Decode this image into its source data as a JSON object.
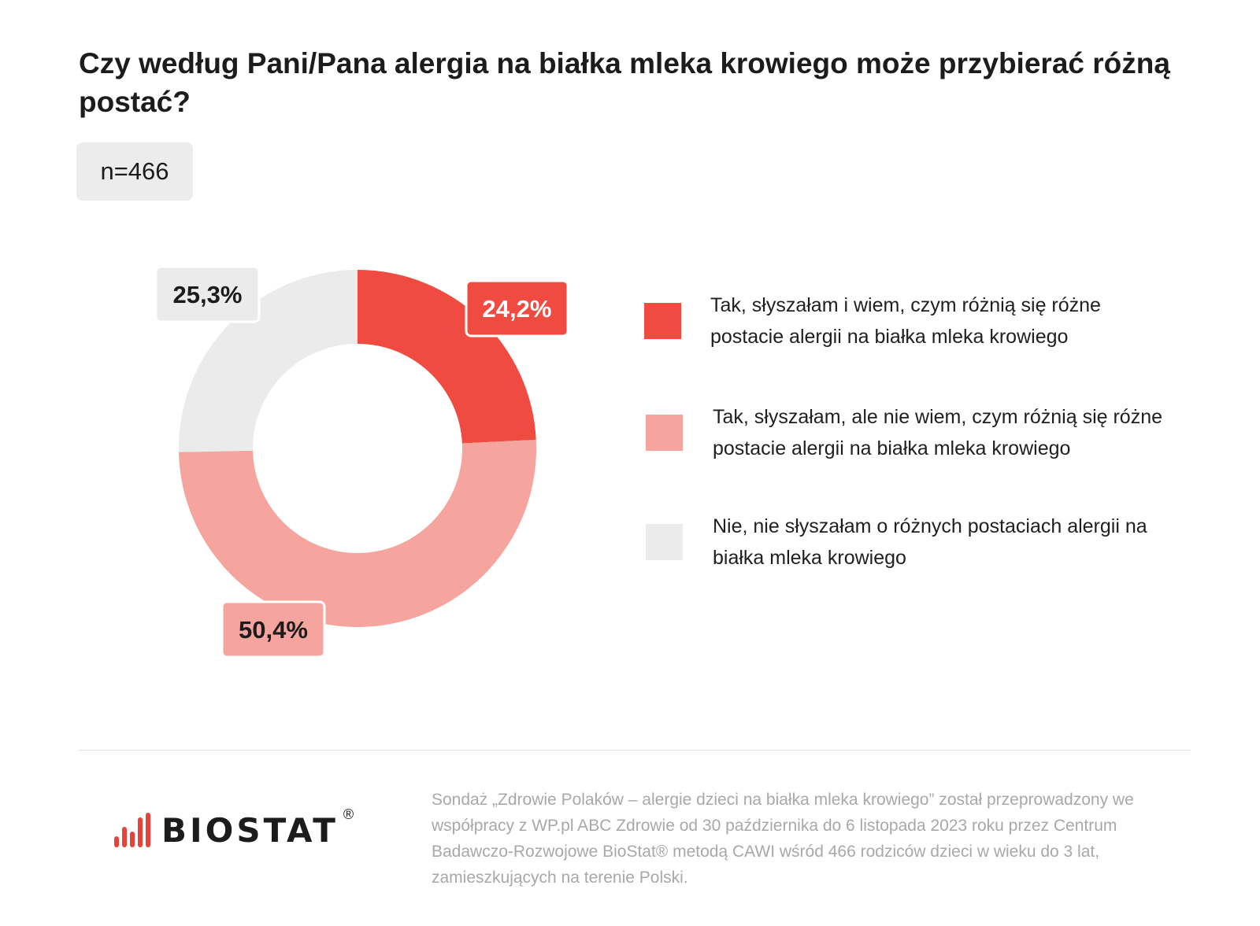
{
  "title": "Czy według Pani/Pana alergia na białka mleka krowiego może przybierać różną postać?",
  "sample_size": "n=466",
  "chart_data": {
    "type": "pie",
    "subtype": "donut",
    "title": "Czy według Pani/Pana alergia na białka mleka krowiego może przybierać różną postać?",
    "unit": "%",
    "slices": [
      {
        "label": "Tak, słyszałam i wiem, czym różnią się różne postacie alergii na białka mleka krowiego",
        "value": 24.2,
        "value_label": "24,2%",
        "color": "#ef4b40",
        "label_text_color": "#ffffff"
      },
      {
        "label": "Tak, słyszałam, ale nie wiem, czym różnią się różne postacie alergii na białka mleka krowiego",
        "value": 50.4,
        "value_label": "50,4%",
        "color": "#f5a49e",
        "label_text_color": "#1c1c1c"
      },
      {
        "label": "Nie, nie słyszałam o różnych postaciach alergii na białka mleka krowiego",
        "value": 25.3,
        "value_label": "25,3%",
        "color": "#ebebeb",
        "label_text_color": "#1c1c1c"
      }
    ],
    "legend_position": "right"
  },
  "footer": {
    "logo_text": "BIOSTAT",
    "logo_reg": "®",
    "note": "Sondaż „Zdrowie Polaków – alergie dzieci na białka mleka krowiego” został przeprowadzony we współpracy z WP.pl ABC Zdrowie od 30 października do 6 listopada 2023 roku przez Centrum Badawczo-Rozwojowe BioStat® metodą CAWI wśród 466 rodziców dzieci w wieku do 3 lat, zamieszkujących na terenie Polski."
  }
}
